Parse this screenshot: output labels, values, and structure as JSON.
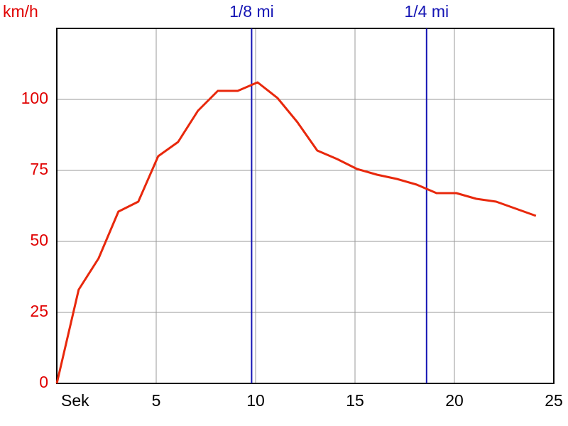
{
  "chart_data": {
    "type": "line",
    "y_label": "km/h",
    "x": [
      0,
      1.1,
      2.1,
      3.1,
      4.1,
      5.1,
      6.1,
      7.1,
      8.1,
      9.1,
      10.1,
      11.1,
      12.1,
      13.1,
      14.1,
      15.1,
      16.1,
      17.1,
      18.1,
      19.1,
      20.1,
      21.1,
      22.1,
      23.1,
      24.1
    ],
    "series": [
      {
        "color": "#e8280c",
        "values": [
          0,
          33,
          44,
          60.5,
          64,
          80,
          85,
          96,
          103,
          103,
          106,
          100.5,
          92,
          82,
          79,
          75.5,
          73.5,
          72,
          70,
          67,
          67,
          65,
          64,
          61.5,
          59
        ]
      }
    ],
    "xlim": [
      0,
      25
    ],
    "xticks": [
      {
        "value": 0,
        "label": "Sek"
      },
      5,
      10,
      15,
      20,
      25
    ],
    "ylim": [
      0,
      125
    ],
    "yticks": [
      0,
      25,
      50,
      75,
      100
    ],
    "grid": true,
    "axis_color": "#e00000",
    "markers": [
      {
        "label": "1/8 mi",
        "x": 9.8,
        "color": "#1414b4"
      },
      {
        "label": "1/4 mi",
        "x": 18.6,
        "color": "#1414b4"
      }
    ]
  }
}
